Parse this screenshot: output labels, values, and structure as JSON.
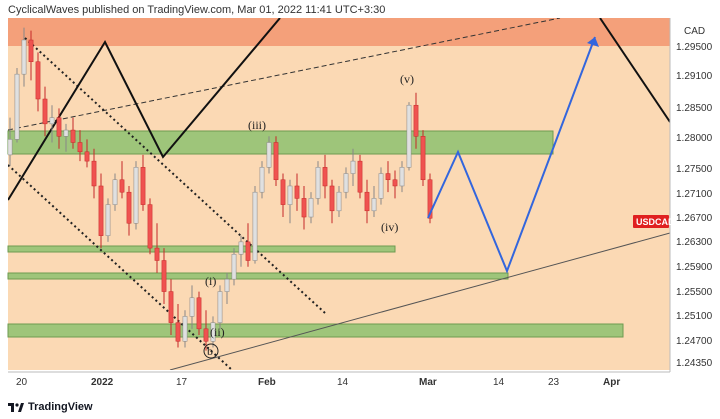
{
  "header": {
    "publisher_text": "CyclicalWaves published on TradingView.com, Mar 01, 2022 11:41 UTC+3:30"
  },
  "footer": {
    "brand": "TradingView"
  },
  "chart_data": {
    "type": "candlestick",
    "currency": "CAD",
    "symbol_tag": "USDCAD",
    "y_ticks": [
      "1.29500",
      "1.29100",
      "1.28500",
      "1.28000",
      "1.27500",
      "1.27100",
      "1.26700",
      "1.26300",
      "1.25900",
      "1.25500",
      "1.25100",
      "1.24700",
      "1.24350"
    ],
    "x_ticks": [
      "20",
      "2022",
      "17",
      "Feb",
      "14",
      "Mar",
      "14",
      "23",
      "Apr"
    ],
    "last_price": 1.2668,
    "wave_labels": [
      "(iii)",
      "(v)",
      "(iv)",
      "(i)",
      "(ii)",
      "b"
    ],
    "colors": {
      "background": "#fbd9b4",
      "upper_zone": "#f4a07a",
      "green_zone": "#9ec57a",
      "candle_up": "#e0e0e0",
      "candle_down": "#ef5350",
      "projection": "#3366dd",
      "symbol_tag": "#e02020"
    },
    "candles": [
      [
        1.277,
        1.283,
        1.2752,
        1.2795
      ],
      [
        1.2795,
        1.291,
        1.279,
        1.29
      ],
      [
        1.29,
        1.2975,
        1.288,
        1.2955
      ],
      [
        1.2955,
        1.297,
        1.289,
        1.292
      ],
      [
        1.292,
        1.2935,
        1.284,
        1.286
      ],
      [
        1.286,
        1.288,
        1.28,
        1.282
      ],
      [
        1.282,
        1.285,
        1.279,
        1.283
      ],
      [
        1.283,
        1.2845,
        1.278,
        1.28
      ],
      [
        1.28,
        1.282,
        1.2775,
        1.281
      ],
      [
        1.281,
        1.283,
        1.278,
        1.279
      ],
      [
        1.279,
        1.281,
        1.276,
        1.2775
      ],
      [
        1.2775,
        1.2795,
        1.275,
        1.276
      ],
      [
        1.276,
        1.278,
        1.27,
        1.272
      ],
      [
        1.272,
        1.274,
        1.262,
        1.264
      ],
      [
        1.264,
        1.27,
        1.263,
        1.269
      ],
      [
        1.269,
        1.274,
        1.268,
        1.273
      ],
      [
        1.273,
        1.276,
        1.27,
        1.271
      ],
      [
        1.271,
        1.272,
        1.264,
        1.266
      ],
      [
        1.266,
        1.276,
        1.265,
        1.275
      ],
      [
        1.275,
        1.277,
        1.268,
        1.269
      ],
      [
        1.269,
        1.27,
        1.261,
        1.262
      ],
      [
        1.262,
        1.266,
        1.258,
        1.26
      ],
      [
        1.26,
        1.262,
        1.253,
        1.255
      ],
      [
        1.255,
        1.257,
        1.248,
        1.25
      ],
      [
        1.25,
        1.253,
        1.246,
        1.247
      ],
      [
        1.247,
        1.252,
        1.246,
        1.251
      ],
      [
        1.251,
        1.256,
        1.249,
        1.254
      ],
      [
        1.254,
        1.255,
        1.248,
        1.249
      ],
      [
        1.249,
        1.252,
        1.2455,
        1.247
      ],
      [
        1.247,
        1.251,
        1.246,
        1.25
      ],
      [
        1.25,
        1.256,
        1.249,
        1.255
      ],
      [
        1.255,
        1.258,
        1.253,
        1.257
      ],
      [
        1.257,
        1.262,
        1.256,
        1.261
      ],
      [
        1.261,
        1.264,
        1.259,
        1.263
      ],
      [
        1.263,
        1.266,
        1.259,
        1.26
      ],
      [
        1.26,
        1.272,
        1.2595,
        1.271
      ],
      [
        1.271,
        1.276,
        1.27,
        1.275
      ],
      [
        1.275,
        1.28,
        1.274,
        1.279
      ],
      [
        1.279,
        1.28,
        1.272,
        1.273
      ],
      [
        1.273,
        1.274,
        1.267,
        1.269
      ],
      [
        1.269,
        1.273,
        1.266,
        1.272
      ],
      [
        1.272,
        1.274,
        1.268,
        1.27
      ],
      [
        1.27,
        1.272,
        1.265,
        1.267
      ],
      [
        1.267,
        1.271,
        1.266,
        1.27
      ],
      [
        1.27,
        1.276,
        1.269,
        1.275
      ],
      [
        1.275,
        1.277,
        1.27,
        1.272
      ],
      [
        1.272,
        1.273,
        1.266,
        1.268
      ],
      [
        1.268,
        1.272,
        1.267,
        1.271
      ],
      [
        1.271,
        1.275,
        1.27,
        1.274
      ],
      [
        1.274,
        1.278,
        1.272,
        1.276
      ],
      [
        1.276,
        1.277,
        1.27,
        1.271
      ],
      [
        1.271,
        1.273,
        1.266,
        1.268
      ],
      [
        1.268,
        1.272,
        1.267,
        1.27
      ],
      [
        1.27,
        1.275,
        1.269,
        1.274
      ],
      [
        1.274,
        1.276,
        1.271,
        1.273
      ],
      [
        1.273,
        1.2745,
        1.27,
        1.272
      ],
      [
        1.272,
        1.276,
        1.271,
        1.275
      ],
      [
        1.275,
        1.2855,
        1.2745,
        1.285
      ],
      [
        1.285,
        1.287,
        1.278,
        1.28
      ],
      [
        1.28,
        1.281,
        1.272,
        1.273
      ],
      [
        1.273,
        1.274,
        1.266,
        1.2668
      ]
    ]
  }
}
